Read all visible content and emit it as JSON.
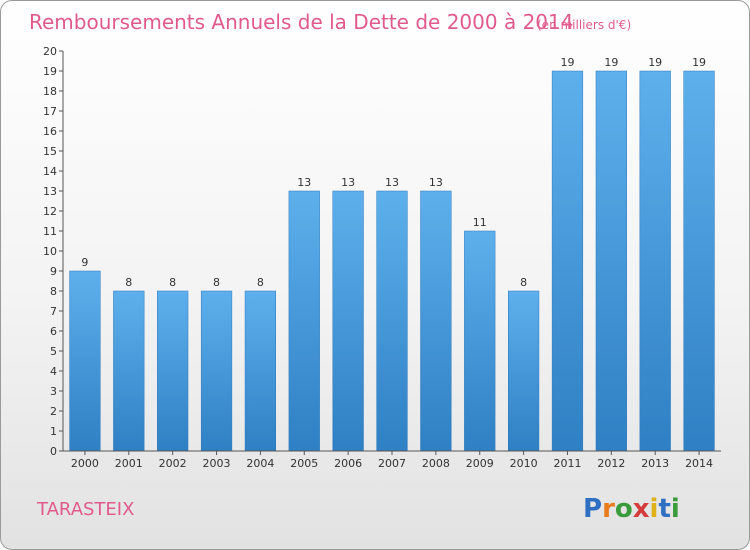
{
  "chart_data": {
    "type": "bar",
    "title": "Remboursements Annuels de la Dette de 2000 à 2014",
    "unit_note": "(en milliers d'€)",
    "categories": [
      "2000",
      "2001",
      "2002",
      "2003",
      "2004",
      "2005",
      "2006",
      "2007",
      "2008",
      "2009",
      "2010",
      "2011",
      "2012",
      "2013",
      "2014"
    ],
    "values": [
      9,
      8,
      8,
      8,
      8,
      13,
      13,
      13,
      13,
      11,
      8,
      19,
      19,
      19,
      19
    ],
    "ylim": [
      0,
      20
    ],
    "yticks": [
      0,
      1,
      2,
      3,
      4,
      5,
      6,
      7,
      8,
      9,
      10,
      11,
      12,
      13,
      14,
      15,
      16,
      17,
      18,
      19,
      20
    ],
    "grid": false,
    "bar_color": "#4a9de0"
  },
  "footer": {
    "place_name": "TARASTEIX",
    "logo_letters": [
      {
        "ch": "P",
        "color": "#2e6fc2"
      },
      {
        "ch": "r",
        "color": "#e97b1a"
      },
      {
        "ch": "o",
        "color": "#3a9b3a"
      },
      {
        "ch": "x",
        "color": "#d43c3c"
      },
      {
        "ch": "i",
        "color": "#e0b21a"
      },
      {
        "ch": "t",
        "color": "#2e6fc2"
      },
      {
        "ch": "i",
        "color": "#3a9b3a"
      }
    ]
  }
}
